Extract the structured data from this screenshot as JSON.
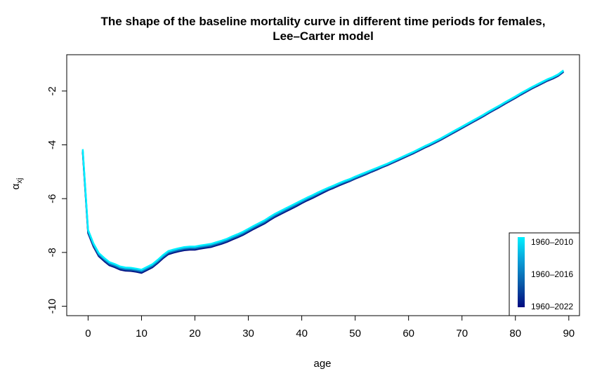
{
  "chart_data": {
    "type": "line",
    "title": "The shape of the baseline mortality curve in different time periods for females,",
    "subtitle": "Lee–Carter model",
    "xlabel": "age",
    "ylabel_symbol": "α",
    "ylabel_subscript": "xj",
    "xlim": [
      -4,
      92
    ],
    "ylim": [
      -10.35,
      -0.65
    ],
    "xticks": [
      0,
      10,
      20,
      30,
      40,
      50,
      60,
      70,
      80,
      90
    ],
    "yticks": [
      -2,
      -4,
      -6,
      -8,
      -10
    ],
    "grid": false,
    "legend": {
      "placement": "bottom-right",
      "entries": [
        "1960–2010",
        "1960–2016",
        "1960–2022"
      ],
      "gradient_colors": [
        "#00f0ff",
        "#0a9fd8",
        "#0a5aa8",
        "#000a80"
      ]
    },
    "x": [
      -1,
      0,
      1,
      2,
      3,
      4,
      5,
      6,
      7,
      8,
      9,
      10,
      11,
      12,
      13,
      14,
      15,
      16,
      17,
      18,
      19,
      20,
      21,
      22,
      23,
      24,
      25,
      26,
      27,
      28,
      29,
      30,
      31,
      32,
      33,
      34,
      35,
      36,
      37,
      38,
      39,
      40,
      41,
      42,
      43,
      44,
      45,
      46,
      47,
      48,
      49,
      50,
      51,
      52,
      53,
      54,
      55,
      56,
      57,
      58,
      59,
      60,
      61,
      62,
      63,
      64,
      65,
      66,
      67,
      68,
      69,
      70,
      71,
      72,
      73,
      74,
      75,
      76,
      77,
      78,
      79,
      80,
      81,
      82,
      83,
      84,
      85,
      86,
      87,
      88,
      89
    ],
    "series": [
      {
        "color": "#000a80",
        "values": [
          -4.28,
          -7.28,
          -7.78,
          -8.14,
          -8.32,
          -8.48,
          -8.55,
          -8.64,
          -8.68,
          -8.69,
          -8.72,
          -8.76,
          -8.66,
          -8.56,
          -8.4,
          -8.22,
          -8.07,
          -8.01,
          -7.96,
          -7.92,
          -7.9,
          -7.9,
          -7.86,
          -7.83,
          -7.8,
          -7.74,
          -7.68,
          -7.61,
          -7.52,
          -7.44,
          -7.35,
          -7.24,
          -7.13,
          -7.03,
          -6.93,
          -6.8,
          -6.68,
          -6.58,
          -6.48,
          -6.38,
          -6.28,
          -6.17,
          -6.07,
          -5.98,
          -5.88,
          -5.78,
          -5.68,
          -5.6,
          -5.51,
          -5.43,
          -5.35,
          -5.26,
          -5.18,
          -5.1,
          -5.01,
          -4.93,
          -4.84,
          -4.76,
          -4.67,
          -4.58,
          -4.49,
          -4.4,
          -4.31,
          -4.21,
          -4.11,
          -4.02,
          -3.92,
          -3.82,
          -3.71,
          -3.6,
          -3.49,
          -3.38,
          -3.27,
          -3.16,
          -3.05,
          -2.94,
          -2.82,
          -2.71,
          -2.6,
          -2.48,
          -2.37,
          -2.26,
          -2.14,
          -2.03,
          -1.92,
          -1.82,
          -1.72,
          -1.62,
          -1.54,
          -1.44,
          -1.29
        ]
      },
      {
        "color": "#0a5aa8",
        "values": [
          -4.24,
          -7.24,
          -7.74,
          -8.1,
          -8.28,
          -8.44,
          -8.51,
          -8.6,
          -8.64,
          -8.65,
          -8.68,
          -8.72,
          -8.62,
          -8.52,
          -8.36,
          -8.18,
          -8.03,
          -7.97,
          -7.92,
          -7.88,
          -7.86,
          -7.86,
          -7.82,
          -7.79,
          -7.76,
          -7.7,
          -7.64,
          -7.57,
          -7.48,
          -7.4,
          -7.31,
          -7.2,
          -7.09,
          -6.99,
          -6.89,
          -6.76,
          -6.64,
          -6.54,
          -6.44,
          -6.34,
          -6.24,
          -6.13,
          -6.03,
          -5.94,
          -5.84,
          -5.74,
          -5.65,
          -5.57,
          -5.48,
          -5.4,
          -5.33,
          -5.24,
          -5.16,
          -5.08,
          -4.99,
          -4.91,
          -4.82,
          -4.74,
          -4.65,
          -4.56,
          -4.47,
          -4.38,
          -4.29,
          -4.19,
          -4.09,
          -4.0,
          -3.9,
          -3.8,
          -3.69,
          -3.58,
          -3.47,
          -3.36,
          -3.25,
          -3.14,
          -3.03,
          -2.92,
          -2.8,
          -2.69,
          -2.58,
          -2.46,
          -2.35,
          -2.24,
          -2.12,
          -2.01,
          -1.9,
          -1.8,
          -1.7,
          -1.6,
          -1.52,
          -1.42,
          -1.27
        ]
      },
      {
        "color": "#0a9fd8",
        "values": [
          -4.2,
          -7.2,
          -7.7,
          -8.06,
          -8.24,
          -8.4,
          -8.47,
          -8.56,
          -8.6,
          -8.61,
          -8.64,
          -8.68,
          -8.58,
          -8.48,
          -8.32,
          -8.14,
          -7.99,
          -7.93,
          -7.88,
          -7.84,
          -7.82,
          -7.82,
          -7.78,
          -7.75,
          -7.72,
          -7.66,
          -7.6,
          -7.53,
          -7.44,
          -7.36,
          -7.27,
          -7.16,
          -7.05,
          -6.95,
          -6.85,
          -6.72,
          -6.6,
          -6.5,
          -6.4,
          -6.3,
          -6.2,
          -6.1,
          -6.0,
          -5.91,
          -5.81,
          -5.71,
          -5.62,
          -5.54,
          -5.45,
          -5.37,
          -5.3,
          -5.21,
          -5.13,
          -5.05,
          -4.96,
          -4.88,
          -4.8,
          -4.72,
          -4.63,
          -4.54,
          -4.45,
          -4.36,
          -4.27,
          -4.17,
          -4.07,
          -3.98,
          -3.88,
          -3.78,
          -3.67,
          -3.56,
          -3.45,
          -3.34,
          -3.23,
          -3.12,
          -3.01,
          -2.9,
          -2.78,
          -2.67,
          -2.56,
          -2.44,
          -2.33,
          -2.22,
          -2.1,
          -1.99,
          -1.88,
          -1.78,
          -1.68,
          -1.58,
          -1.5,
          -1.4,
          -1.25
        ]
      },
      {
        "color": "#00f0ff",
        "values": [
          -4.16,
          -7.16,
          -7.66,
          -8.02,
          -8.2,
          -8.36,
          -8.43,
          -8.52,
          -8.56,
          -8.57,
          -8.6,
          -8.64,
          -8.54,
          -8.44,
          -8.28,
          -8.1,
          -7.95,
          -7.89,
          -7.84,
          -7.8,
          -7.78,
          -7.78,
          -7.74,
          -7.71,
          -7.68,
          -7.62,
          -7.56,
          -7.49,
          -7.4,
          -7.32,
          -7.23,
          -7.12,
          -7.01,
          -6.91,
          -6.81,
          -6.68,
          -6.56,
          -6.46,
          -6.36,
          -6.26,
          -6.16,
          -6.06,
          -5.96,
          -5.87,
          -5.77,
          -5.68,
          -5.59,
          -5.51,
          -5.42,
          -5.34,
          -5.27,
          -5.18,
          -5.1,
          -5.02,
          -4.94,
          -4.86,
          -4.78,
          -4.7,
          -4.61,
          -4.52,
          -4.43,
          -4.34,
          -4.25,
          -4.15,
          -4.05,
          -3.96,
          -3.86,
          -3.76,
          -3.65,
          -3.54,
          -3.43,
          -3.32,
          -3.21,
          -3.1,
          -2.99,
          -2.88,
          -2.76,
          -2.65,
          -2.54,
          -2.42,
          -2.31,
          -2.2,
          -2.08,
          -1.97,
          -1.86,
          -1.76,
          -1.66,
          -1.56,
          -1.48,
          -1.38,
          -1.23
        ]
      }
    ]
  }
}
